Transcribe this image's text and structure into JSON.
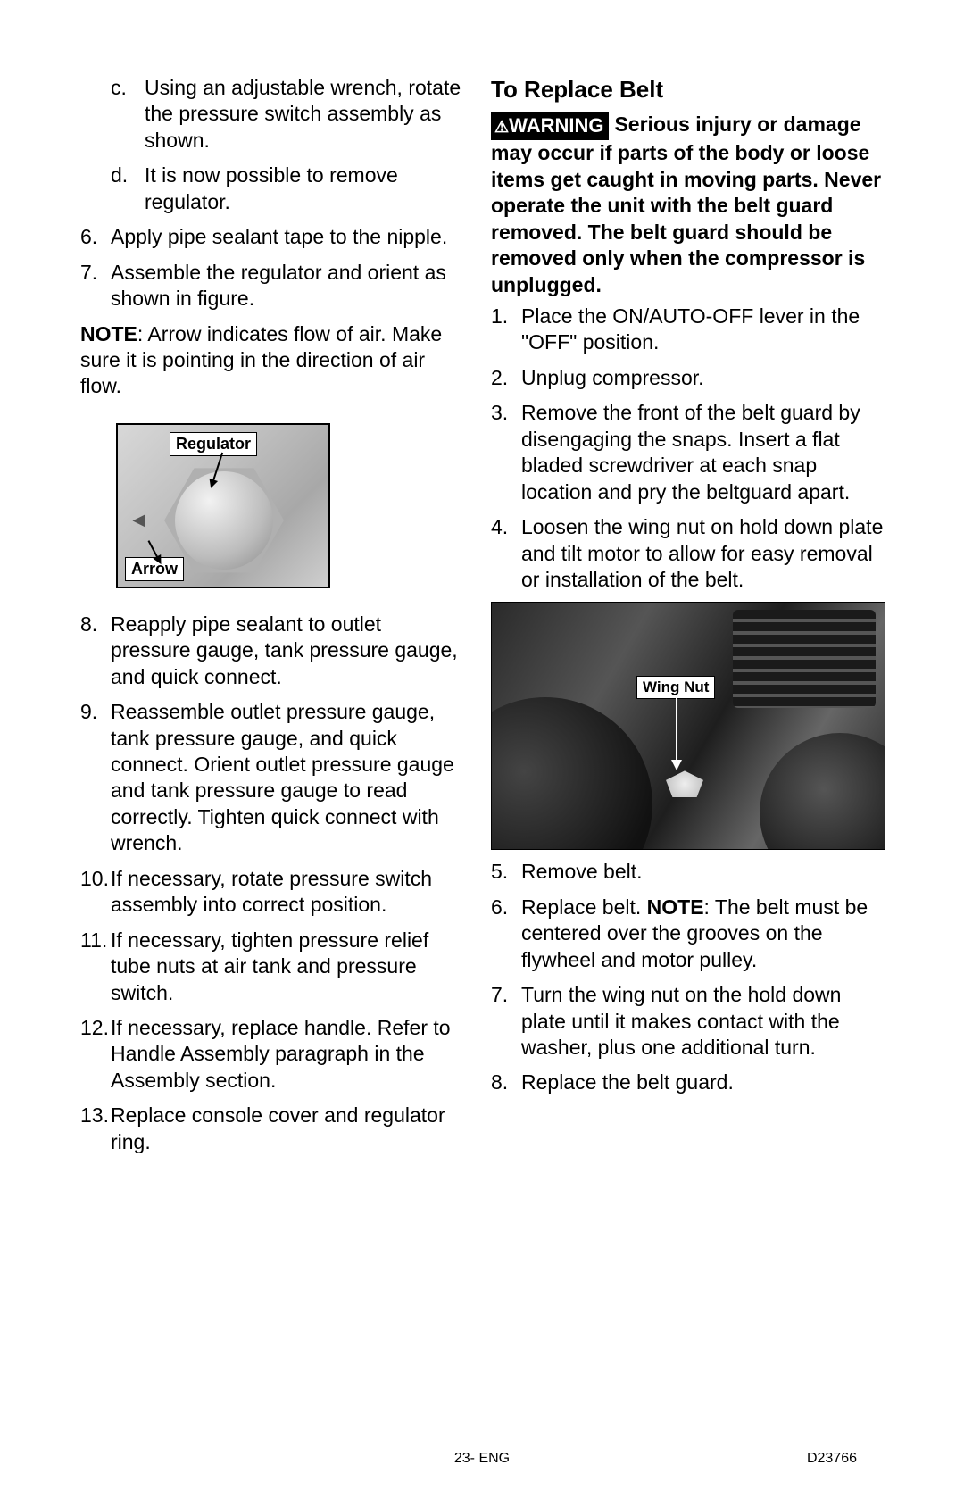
{
  "left": {
    "sub_c_num": "c.",
    "sub_c": "Using an adjustable wrench, rotate the pressure switch assembly as shown.",
    "sub_d_num": "d.",
    "sub_d": "It is now possible to remove regulator.",
    "n6": "6.",
    "t6": "Apply pipe sealant tape to the nipple.",
    "n7": "7.",
    "t7": "Assemble the regulator and orient as shown in figure.",
    "note_label": "NOTE",
    "note_text": ": Arrow indicates flow of air. Make sure it is pointing in the direction of air flow.",
    "fig1_regulator": "Regulator",
    "fig1_arrow": "Arrow",
    "n8": "8.",
    "t8": "Reapply pipe sealant to outlet pressure gauge, tank pressure gauge, and quick connect.",
    "n9": "9.",
    "t9": "Reassemble outlet pressure gauge, tank pressure gauge, and quick connect. Orient outlet pressure gauge and tank pressure gauge to read correctly. Tighten quick connect with wrench.",
    "n10": "10.",
    "t10": "If necessary, rotate pressure switch assembly into correct position.",
    "n11": "11.",
    "t11": "If necessary, tighten pressure relief tube nuts at air tank and pressure switch.",
    "n12": "12.",
    "t12": "If necessary, replace handle. Refer to Handle Assembly paragraph in the Assembly section.",
    "n13": "13.",
    "t13": "Replace console cover and regulator ring."
  },
  "right": {
    "heading": "To Replace Belt",
    "warning_label": "WARNING",
    "warning_lead": "Serious injury or damage may occur if parts of the body or loose items get caught in moving parts. Never operate the unit with the belt guard removed. The belt guard should be removed only when the compressor is unplugged.",
    "n1": "1.",
    "t1": "Place the ON/AUTO-OFF lever in the \"OFF\" position.",
    "n2": "2.",
    "t2": "Unplug compressor.",
    "n3": "3.",
    "t3": "Remove the front of the belt guard by disengaging the snaps. Insert a flat bladed screwdriver at each snap location and pry the beltguard apart.",
    "n4": "4.",
    "t4": "Loosen the wing nut on hold down plate and tilt motor to allow for easy removal or installation of the belt.",
    "fig2_wingnut": "Wing Nut",
    "n5": "5.",
    "t5": "Remove belt.",
    "n6": "6.",
    "t6a": "Replace belt. ",
    "t6_note": "NOTE",
    "t6b": ": The belt must be centered over the grooves on the flywheel and motor pulley.",
    "n7": "7.",
    "t7": "Turn the wing nut on the hold down plate until it makes contact with the washer, plus one additional turn.",
    "n8": "8.",
    "t8": "Replace the belt guard."
  },
  "footer": {
    "center": "23- ENG",
    "right": "D23766"
  }
}
